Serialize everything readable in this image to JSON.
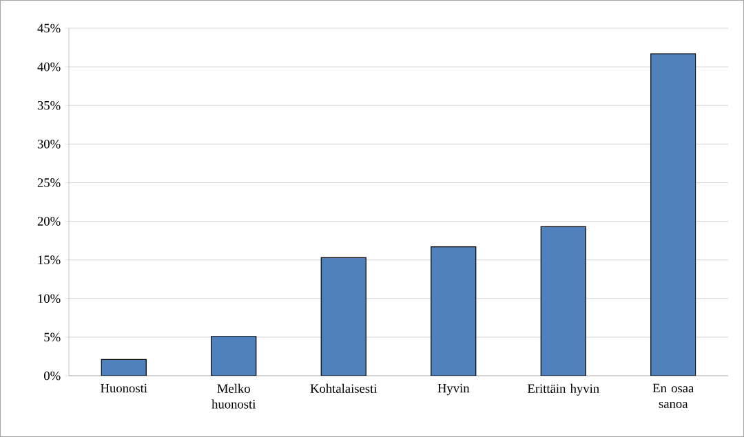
{
  "chart_data": {
    "type": "bar",
    "categories": [
      "Huonosti",
      "Melko huonosti",
      "Kohtalaisesti",
      "Hyvin",
      "Erittäin hyvin",
      "En osaa sanoa"
    ],
    "values": [
      2.1,
      5.1,
      15.3,
      16.7,
      19.3,
      41.7
    ],
    "color": "#4f81bd",
    "ylim": [
      0,
      45
    ],
    "yticks": [
      {
        "value": 0,
        "label": "0%"
      },
      {
        "value": 5,
        "label": "5%"
      },
      {
        "value": 10,
        "label": "10%"
      },
      {
        "value": 15,
        "label": "15%"
      },
      {
        "value": 20,
        "label": "20%"
      },
      {
        "value": 25,
        "label": "25%"
      },
      {
        "value": 30,
        "label": "30%"
      },
      {
        "value": 35,
        "label": "35%"
      },
      {
        "value": 40,
        "label": "40%"
      },
      {
        "value": 45,
        "label": "45%"
      }
    ],
    "grid": "y"
  }
}
